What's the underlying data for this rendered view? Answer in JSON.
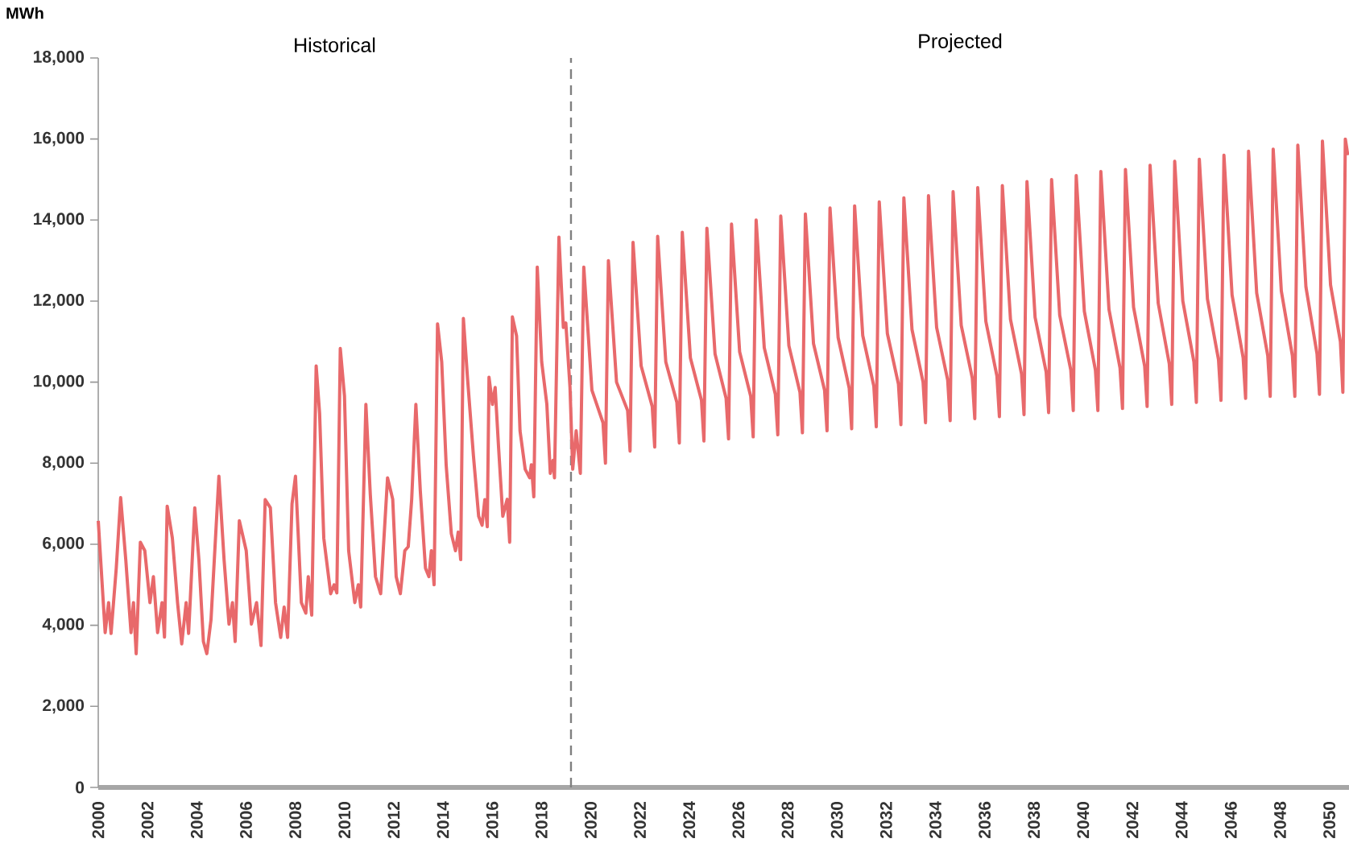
{
  "chart_data": {
    "type": "line",
    "ylabel": "MWh",
    "color": "#e8696b",
    "line_style": "solid",
    "annotations": [
      "Historical",
      "Projected"
    ],
    "ref_lines": [
      {
        "axis": "x",
        "value": 2019.2,
        "color": "#808080",
        "line_style": "dashed"
      }
    ],
    "xlim": [
      2000,
      2050.8
    ],
    "ylim": [
      0,
      18000
    ],
    "xticks": [
      2000,
      2002,
      2004,
      2006,
      2008,
      2010,
      2012,
      2014,
      2016,
      2018,
      2020,
      2022,
      2024,
      2026,
      2028,
      2030,
      2032,
      2034,
      2036,
      2038,
      2040,
      2042,
      2044,
      2046,
      2048,
      2050
    ],
    "yticks": [
      0,
      {
        "value": 2000,
        "label": "2,000"
      },
      {
        "value": 4000,
        "label": "4,000"
      },
      {
        "value": 6000,
        "label": "6,000"
      },
      {
        "value": 8000,
        "label": "8,000"
      },
      {
        "value": 10000,
        "label": "10,000"
      },
      {
        "value": 12000,
        "label": "12,000"
      },
      {
        "value": 14000,
        "label": "14,000"
      },
      {
        "value": 16000,
        "label": "16,000"
      },
      {
        "value": 18000,
        "label": "18,000"
      }
    ],
    "x": [
      2000.0,
      2000.28,
      2000.42,
      2000.52,
      2000.73,
      2000.91,
      2001.12,
      2001.33,
      2001.43,
      2001.54,
      2001.71,
      2001.89,
      2002.1,
      2002.24,
      2002.41,
      2002.59,
      2002.69,
      2002.8,
      2003.01,
      2003.22,
      2003.39,
      2003.57,
      2003.67,
      2003.92,
      2004.09,
      2004.27,
      2004.41,
      2004.58,
      2004.9,
      2005.11,
      2005.31,
      2005.45,
      2005.56,
      2005.73,
      2006.01,
      2006.22,
      2006.43,
      2006.61,
      2006.78,
      2006.99,
      2007.2,
      2007.41,
      2007.55,
      2007.69,
      2007.87,
      2008.01,
      2008.25,
      2008.43,
      2008.53,
      2008.67,
      2008.85,
      2008.99,
      2009.16,
      2009.44,
      2009.58,
      2009.69,
      2009.83,
      2010.0,
      2010.17,
      2010.42,
      2010.56,
      2010.66,
      2010.87,
      2011.05,
      2011.26,
      2011.47,
      2011.75,
      2011.96,
      2012.1,
      2012.27,
      2012.45,
      2012.59,
      2012.73,
      2012.9,
      2013.08,
      2013.29,
      2013.43,
      2013.53,
      2013.64,
      2013.78,
      2013.95,
      2014.13,
      2014.34,
      2014.51,
      2014.62,
      2014.72,
      2014.83,
      2015.0,
      2015.24,
      2015.45,
      2015.59,
      2015.7,
      2015.8,
      2015.87,
      2016.01,
      2016.12,
      2016.26,
      2016.43,
      2016.61,
      2016.71,
      2016.82,
      2016.99,
      2017.13,
      2017.34,
      2017.52,
      2017.59,
      2017.69,
      2017.83,
      2018.01,
      2018.22,
      2018.36,
      2018.47,
      2018.53,
      2018.71,
      2018.89,
      2018.99,
      2019.16,
      2019.27,
      2019.41,
      2019.58,
      2019.72,
      2020.05,
      2020.5,
      2020.6,
      2020.72,
      2021.05,
      2021.5,
      2021.6,
      2021.72,
      2022.05,
      2022.5,
      2022.6,
      2022.72,
      2023.05,
      2023.5,
      2023.6,
      2023.72,
      2024.05,
      2024.5,
      2024.6,
      2024.72,
      2025.05,
      2025.5,
      2025.6,
      2025.72,
      2026.05,
      2026.5,
      2026.6,
      2026.72,
      2027.05,
      2027.5,
      2027.6,
      2027.72,
      2028.05,
      2028.5,
      2028.6,
      2028.72,
      2029.05,
      2029.5,
      2029.6,
      2029.72,
      2030.05,
      2030.5,
      2030.6,
      2030.72,
      2031.05,
      2031.5,
      2031.6,
      2031.72,
      2032.05,
      2032.5,
      2032.6,
      2032.72,
      2033.05,
      2033.5,
      2033.6,
      2033.72,
      2034.05,
      2034.5,
      2034.6,
      2034.72,
      2035.05,
      2035.5,
      2035.6,
      2035.72,
      2036.05,
      2036.5,
      2036.6,
      2036.72,
      2037.05,
      2037.5,
      2037.6,
      2037.72,
      2038.05,
      2038.5,
      2038.6,
      2038.72,
      2039.05,
      2039.5,
      2039.6,
      2039.72,
      2040.05,
      2040.5,
      2040.6,
      2040.72,
      2041.05,
      2041.5,
      2041.6,
      2041.72,
      2042.05,
      2042.5,
      2042.6,
      2042.72,
      2043.05,
      2043.5,
      2043.6,
      2043.72,
      2044.05,
      2044.5,
      2044.6,
      2044.72,
      2045.05,
      2045.5,
      2045.6,
      2045.72,
      2046.05,
      2046.5,
      2046.6,
      2046.72,
      2047.05,
      2047.5,
      2047.6,
      2047.72,
      2048.05,
      2048.5,
      2048.6,
      2048.72,
      2049.05,
      2049.5,
      2049.6,
      2049.72,
      2050.05,
      2050.45,
      2050.55,
      2050.65,
      2050.75
    ],
    "values": [
      6580,
      3820,
      4560,
      3800,
      5400,
      7150,
      5600,
      3820,
      4560,
      3300,
      6050,
      5840,
      4560,
      5200,
      3820,
      4560,
      3710,
      6940,
      6150,
      4560,
      3540,
      4560,
      3800,
      6900,
      5600,
      3600,
      3300,
      4140,
      7680,
      5620,
      4030,
      4560,
      3600,
      6580,
      5840,
      4030,
      4560,
      3500,
      7100,
      6900,
      4560,
      3700,
      4450,
      3700,
      7000,
      7680,
      4560,
      4300,
      5200,
      4250,
      10400,
      9230,
      6150,
      4780,
      5000,
      4800,
      10830,
      9660,
      5840,
      4560,
      5000,
      4450,
      9450,
      7220,
      5200,
      4780,
      7640,
      7110,
      5200,
      4780,
      5840,
      5940,
      7110,
      9450,
      7320,
      5410,
      5200,
      5840,
      5000,
      11440,
      10500,
      7960,
      6260,
      5840,
      6300,
      5620,
      11570,
      10080,
      8170,
      6690,
      6470,
      7100,
      6430,
      10120,
      9450,
      9870,
      8380,
      6690,
      7110,
      6050,
      11610,
      11140,
      8800,
      7850,
      7640,
      7960,
      7170,
      12840,
      10500,
      9450,
      7750,
      8070,
      7640,
      13580,
      11350,
      11460,
      9870,
      7850,
      8800,
      7750,
      12840,
      9800,
      9000,
      8000,
      13000,
      10000,
      9300,
      8300,
      13450,
      10400,
      9400,
      8400,
      13600,
      10500,
      9500,
      8500,
      13700,
      10600,
      9550,
      8550,
      13800,
      10700,
      9600,
      8600,
      13900,
      10750,
      9650,
      8650,
      14000,
      10850,
      9700,
      8700,
      14100,
      10900,
      9750,
      8750,
      14150,
      10950,
      9800,
      8800,
      14300,
      11100,
      9850,
      8850,
      14350,
      11150,
      9900,
      8900,
      14450,
      11200,
      9950,
      8950,
      14550,
      11300,
      10000,
      9000,
      14600,
      11350,
      10050,
      9050,
      14700,
      11400,
      10100,
      9100,
      14800,
      11500,
      10150,
      9150,
      14850,
      11550,
      10200,
      9200,
      14950,
      11600,
      10250,
      9250,
      15000,
      11650,
      10300,
      9300,
      15100,
      11750,
      10300,
      9300,
      15200,
      11800,
      10350,
      9350,
      15250,
      11850,
      10400,
      9400,
      15350,
      11950,
      10450,
      9450,
      15450,
      12000,
      10500,
      9500,
      15500,
      12050,
      10550,
      9550,
      15600,
      12150,
      10600,
      9600,
      15700,
      12200,
      10650,
      9650,
      15750,
      12250,
      10650,
      9650,
      15850,
      12350,
      10700,
      9700,
      15950,
      12400,
      11000,
      9750,
      16000,
      15600
    ]
  }
}
